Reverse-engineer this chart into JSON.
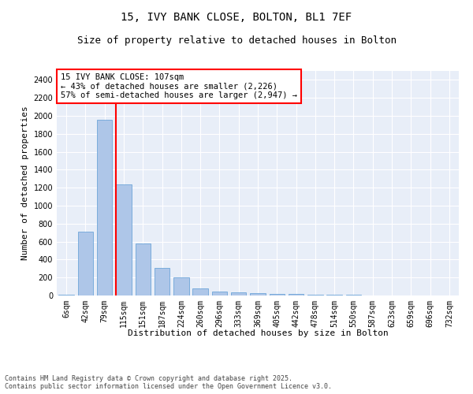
{
  "title_line1": "15, IVY BANK CLOSE, BOLTON, BL1 7EF",
  "title_line2": "Size of property relative to detached houses in Bolton",
  "xlabel": "Distribution of detached houses by size in Bolton",
  "ylabel": "Number of detached properties",
  "categories": [
    "6sqm",
    "42sqm",
    "79sqm",
    "115sqm",
    "151sqm",
    "187sqm",
    "224sqm",
    "260sqm",
    "296sqm",
    "333sqm",
    "369sqm",
    "405sqm",
    "442sqm",
    "478sqm",
    "514sqm",
    "550sqm",
    "587sqm",
    "623sqm",
    "659sqm",
    "696sqm",
    "732sqm"
  ],
  "values": [
    10,
    710,
    1960,
    1240,
    580,
    310,
    205,
    75,
    43,
    35,
    30,
    20,
    15,
    10,
    8,
    5,
    3,
    2,
    1,
    1,
    0
  ],
  "bar_color": "#aec6e8",
  "bar_edge_color": "#5b9bd5",
  "vline_color": "red",
  "annotation_text": "15 IVY BANK CLOSE: 107sqm\n← 43% of detached houses are smaller (2,226)\n57% of semi-detached houses are larger (2,947) →",
  "annotation_box_color": "white",
  "annotation_box_edge": "red",
  "ylim": [
    0,
    2500
  ],
  "yticks": [
    0,
    200,
    400,
    600,
    800,
    1000,
    1200,
    1400,
    1600,
    1800,
    2000,
    2200,
    2400
  ],
  "bg_color": "#e8eef8",
  "grid_color": "white",
  "footer_text": "Contains HM Land Registry data © Crown copyright and database right 2025.\nContains public sector information licensed under the Open Government Licence v3.0.",
  "title_fontsize": 10,
  "subtitle_fontsize": 9,
  "axis_label_fontsize": 8,
  "tick_fontsize": 7,
  "annotation_fontsize": 7.5,
  "footer_fontsize": 6
}
